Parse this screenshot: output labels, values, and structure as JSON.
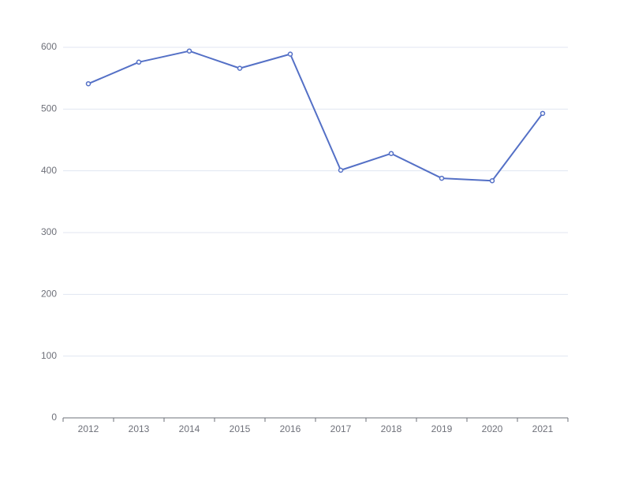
{
  "chart_data": {
    "type": "line",
    "title": "",
    "xlabel": "",
    "ylabel": "",
    "categories": [
      "2012",
      "2013",
      "2014",
      "2015",
      "2016",
      "2017",
      "2018",
      "2019",
      "2020",
      "2021"
    ],
    "series": [
      {
        "values": [
          541,
          576,
          594,
          566,
          589,
          401,
          428,
          388,
          384,
          493
        ],
        "color": "#5470c6"
      }
    ],
    "ylim": [
      0,
      600
    ],
    "yticks": [
      0,
      100,
      200,
      300,
      400,
      500,
      600
    ],
    "grid": true,
    "legend": "none"
  }
}
